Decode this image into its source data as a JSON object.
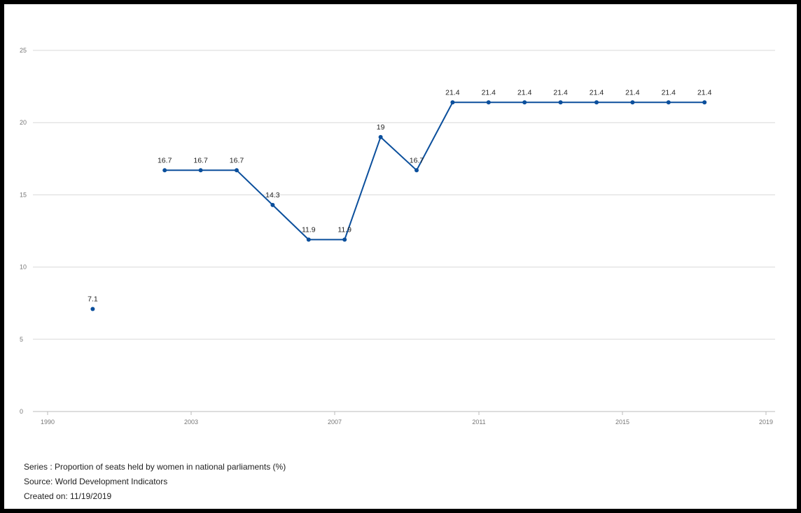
{
  "chart_data": {
    "type": "line",
    "x_ticks": [
      "1990",
      "2003",
      "2007",
      "2011",
      "2015",
      "2019"
    ],
    "y_ticks": [
      0,
      5,
      10,
      15,
      20,
      25
    ],
    "ylim": [
      0,
      25
    ],
    "grid": true,
    "series": [
      {
        "color": "#0b4f9c",
        "points": [
          {
            "x": 2001,
            "y": 7.1,
            "label": "7.1"
          },
          {
            "x": 2003,
            "y": 16.7,
            "label": "16.7"
          },
          {
            "x": 2004,
            "y": 16.7,
            "label": "16.7"
          },
          {
            "x": 2005,
            "y": 16.7,
            "label": "16.7"
          },
          {
            "x": 2006,
            "y": 14.3,
            "label": "14.3"
          },
          {
            "x": 2007,
            "y": 11.9,
            "label": "11.9"
          },
          {
            "x": 2008,
            "y": 11.9,
            "label": "11.9"
          },
          {
            "x": 2009,
            "y": 19,
            "label": "19"
          },
          {
            "x": 2010,
            "y": 16.7,
            "label": "16.7"
          },
          {
            "x": 2011,
            "y": 21.4,
            "label": "21.4"
          },
          {
            "x": 2012,
            "y": 21.4,
            "label": "21.4"
          },
          {
            "x": 2013,
            "y": 21.4,
            "label": "21.4"
          },
          {
            "x": 2014,
            "y": 21.4,
            "label": "21.4"
          },
          {
            "x": 2015,
            "y": 21.4,
            "label": "21.4"
          },
          {
            "x": 2016,
            "y": 21.4,
            "label": "21.4"
          },
          {
            "x": 2017,
            "y": 21.4,
            "label": "21.4"
          },
          {
            "x": 2018,
            "y": 21.4,
            "label": "21.4"
          }
        ]
      }
    ]
  },
  "notes": {
    "series": "Series : Proportion of seats held by women in national parliaments (%)",
    "source": "Source: World Development Indicators",
    "created": "Created on: 11/19/2019"
  }
}
